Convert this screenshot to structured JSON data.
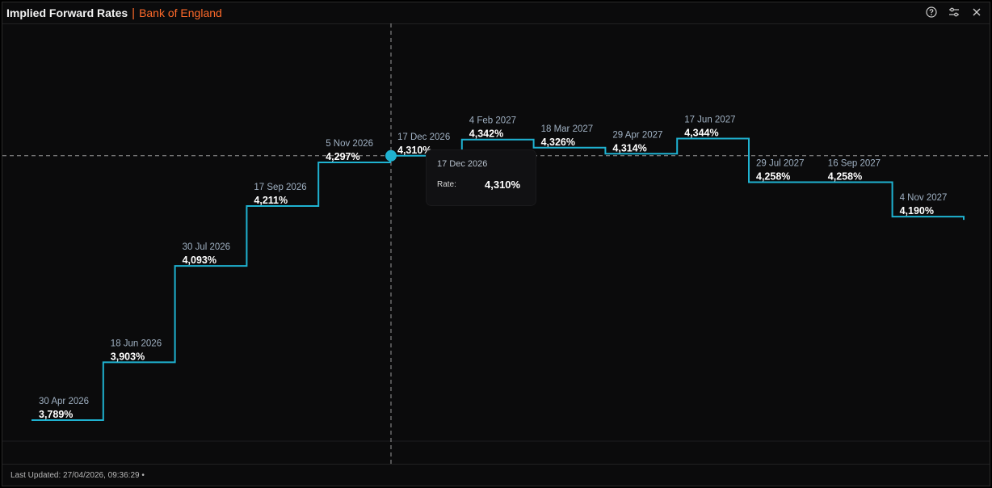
{
  "header": {
    "title": "Implied Forward Rates",
    "subtitle": "Bank of England",
    "icons": [
      "help-icon",
      "settings-sliders-icon",
      "close-icon"
    ]
  },
  "footer": {
    "last_updated": "Last Updated: 27/04/2026, 09:36:29 •"
  },
  "tooltip": {
    "date": "17 Dec 2026",
    "label": "Rate:",
    "value": "4,310%"
  },
  "colors": {
    "line": "#1fb2d1",
    "accent": "#ff6a2a",
    "background": "#0b0b0c"
  },
  "chart_data": {
    "type": "line",
    "step": true,
    "x": [
      "30 Apr 2026",
      "18 Jun 2026",
      "30 Jul 2026",
      "17 Sep 2026",
      "5 Nov 2026",
      "17 Dec 2026",
      "4 Feb 2027",
      "18 Mar 2027",
      "29 Apr 2027",
      "17 Jun 2027",
      "29 Jul 2027",
      "16 Sep 2027",
      "4 Nov 2027"
    ],
    "y": [
      3.789,
      3.903,
      4.093,
      4.211,
      4.297,
      4.31,
      4.342,
      4.326,
      4.314,
      4.344,
      4.258,
      4.258,
      4.19
    ],
    "value_labels": [
      "3,789%",
      "3,903%",
      "4,093%",
      "4,211%",
      "4,297%",
      "4,310%",
      "4,342%",
      "4,326%",
      "4,314%",
      "4,344%",
      "4,258%",
      "4,258%",
      "4,190%"
    ],
    "highlighted": "17 Dec 2026",
    "grid": false
  }
}
